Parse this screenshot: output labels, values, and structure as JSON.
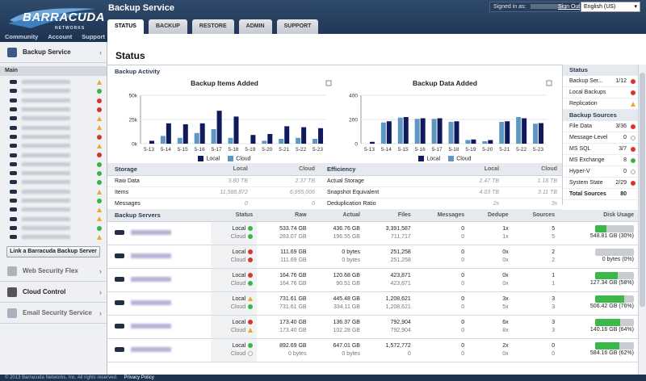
{
  "app": {
    "logo_text": "BARRACUDA",
    "logo_sub": "NETWORKS",
    "product": "Backup Service"
  },
  "top_links": [
    "Community",
    "Account",
    "Support"
  ],
  "header": {
    "signed_in_label": "Signed in as:",
    "sign_out": "Sign Out",
    "language": "English (US)"
  },
  "tabs": [
    "STATUS",
    "BACKUP",
    "RESTORE",
    "ADMIN",
    "SUPPORT"
  ],
  "sidebar": {
    "backup_service": "Backup Service",
    "main_label": "Main",
    "device_status": [
      "warning",
      "green",
      "red",
      "red",
      "warning",
      "warning",
      "red",
      "warning",
      "red",
      "green",
      "green",
      "green",
      "warning",
      "green",
      "warning",
      "warning",
      "green",
      "warning"
    ],
    "link_button": "Link a Barracuda Backup Server",
    "other_services": [
      "Web Security Flex",
      "Cloud Control",
      "Email Security Service"
    ]
  },
  "page_title": "Status",
  "activity": {
    "heading": "Backup Activity",
    "legend_local": "Local",
    "legend_cloud": "Cloud"
  },
  "chart_data": [
    {
      "type": "bar",
      "title": "Backup Items Added",
      "categories": [
        "5-13",
        "5-14",
        "5-15",
        "5-16",
        "5-17",
        "5-18",
        "5-19",
        "5-20",
        "5-21",
        "5-22",
        "5-23"
      ],
      "ytick_labels": [
        "50k",
        "25k",
        "0k"
      ],
      "ylim": [
        0,
        50000
      ],
      "series": [
        {
          "name": "Local",
          "values": [
            3000,
            21000,
            20000,
            21000,
            34000,
            28000,
            9000,
            10000,
            18000,
            17000,
            16000
          ]
        },
        {
          "name": "Cloud",
          "values": [
            0,
            8000,
            6000,
            11000,
            15000,
            6000,
            0,
            3000,
            5000,
            6000,
            5000
          ]
        }
      ],
      "colors": {
        "Local": "#0e1a5c",
        "Cloud": "#5d97c2"
      }
    },
    {
      "type": "bar",
      "title": "Backup Data Added",
      "categories": [
        "5-13",
        "5-14",
        "5-15",
        "5-16",
        "5-17",
        "5-18",
        "5-19",
        "5-20",
        "5-21",
        "5-22",
        "5-23"
      ],
      "ytick_labels": [
        "400",
        "200",
        "0"
      ],
      "ylim": [
        0,
        400
      ],
      "series": [
        {
          "name": "Local",
          "values": [
            15,
            185,
            220,
            210,
            210,
            185,
            35,
            30,
            185,
            210,
            170
          ]
        },
        {
          "name": "Cloud",
          "values": [
            0,
            175,
            215,
            205,
            205,
            180,
            30,
            20,
            180,
            220,
            165
          ]
        }
      ],
      "colors": {
        "Local": "#0e1a5c",
        "Cloud": "#5d97c2"
      }
    }
  ],
  "storage": {
    "heading": "Storage",
    "col_local": "Local",
    "col_cloud": "Cloud",
    "rows": [
      {
        "label": "Raw Data",
        "local": "3.80 TB",
        "cloud": "2.37 TB"
      },
      {
        "label": "Items",
        "local": "11,588,872",
        "cloud": "6,955,006"
      },
      {
        "label": "Messages",
        "local": "0",
        "cloud": "0"
      }
    ]
  },
  "efficiency": {
    "heading": "Efficiency",
    "col_local": "Local",
    "col_cloud": "Cloud",
    "rows": [
      {
        "label": "Actual Storage",
        "local": "2.47 TB",
        "cloud": "1.18 TB"
      },
      {
        "label": "Snapshot Equivalent",
        "local": "4.03 TB",
        "cloud": "3.11 TB"
      },
      {
        "label": "Deduplication Ratio",
        "local": "2x",
        "cloud": "3x"
      }
    ]
  },
  "status_panel": {
    "status_heading": "Status",
    "status_rows": [
      {
        "label": "Backup Ser...",
        "value": "1/12",
        "ind": "red"
      },
      {
        "label": "Local Backups",
        "value": "",
        "ind": "red"
      },
      {
        "label": "Replication",
        "value": "",
        "ind": "warning"
      }
    ],
    "sources_heading": "Backup Sources",
    "source_rows": [
      {
        "label": "File Data",
        "value": "3/36",
        "ind": "red"
      },
      {
        "label": "Message-Level",
        "value": "0",
        "ind": "gray"
      },
      {
        "label": "MS SQL",
        "value": "3/7",
        "ind": "red"
      },
      {
        "label": "MS Exchange",
        "value": "8",
        "ind": "green"
      },
      {
        "label": "Hyper-V",
        "value": "0",
        "ind": "gray"
      },
      {
        "label": "System State",
        "value": "2/29",
        "ind": "red"
      }
    ],
    "total_label": "Total Sources",
    "total_value": "80"
  },
  "servers": {
    "heading": "Backup Servers",
    "columns": [
      "Status",
      "Raw",
      "Actual",
      "Files",
      "Messages",
      "Dedupe",
      "Sources",
      "Disk Usage"
    ],
    "local_label": "Local",
    "cloud_label": "Cloud",
    "rows": [
      {
        "local_ind": "green",
        "cloud_ind": "green",
        "raw": [
          "533.74 GB",
          "283.07 GB"
        ],
        "actual": [
          "436.76 GB",
          "196.55 GB"
        ],
        "files": [
          "3,391,587",
          "711,717"
        ],
        "messages": [
          "0",
          "0"
        ],
        "dedupe": [
          "1x",
          "1x"
        ],
        "sources": [
          "5",
          "5"
        ],
        "disk_text": "548.81 GB (30%)",
        "disk_fraction": 0.3
      },
      {
        "local_ind": "red",
        "cloud_ind": "red",
        "raw": [
          "111.69 GB",
          "111.69 GB"
        ],
        "actual": [
          "0 bytes",
          "0 bytes"
        ],
        "files": [
          "251,258",
          "251,258"
        ],
        "messages": [
          "0",
          "0"
        ],
        "dedupe": [
          "0x",
          "0x"
        ],
        "sources": [
          "2",
          "2"
        ],
        "disk_text": "0 bytes (0%)",
        "disk_fraction": 0.0
      },
      {
        "local_ind": "red",
        "cloud_ind": "green",
        "raw": [
          "164.76 GB",
          "164.76 GB"
        ],
        "actual": [
          "120.68 GB",
          "90.51 GB"
        ],
        "files": [
          "423,871",
          "423,871"
        ],
        "messages": [
          "0",
          "0"
        ],
        "dedupe": [
          "0x",
          "0x"
        ],
        "sources": [
          "1",
          "1"
        ],
        "disk_text": "127.34 GB (58%)",
        "disk_fraction": 0.58
      },
      {
        "local_ind": "warning",
        "cloud_ind": "green",
        "raw": [
          "731.61 GB",
          "731.61 GB"
        ],
        "actual": [
          "445.48 GB",
          "334.11 GB"
        ],
        "files": [
          "1,208,621",
          "1,208,621"
        ],
        "messages": [
          "0",
          "0"
        ],
        "dedupe": [
          "3x",
          "5x"
        ],
        "sources": [
          "3",
          "3"
        ],
        "disk_text": "506.42 GB (76%)",
        "disk_fraction": 0.76
      },
      {
        "local_ind": "red",
        "cloud_ind": "warning",
        "raw": [
          "173.40 GB",
          "173.40 GB"
        ],
        "actual": [
          "136.37 GB",
          "102.28 GB"
        ],
        "files": [
          "792,904",
          "792,904"
        ],
        "messages": [
          "0",
          "0"
        ],
        "dedupe": [
          "6x",
          "8x"
        ],
        "sources": [
          "3",
          "3"
        ],
        "disk_text": "140.16 GB (64%)",
        "disk_fraction": 0.64
      },
      {
        "local_ind": "green",
        "cloud_ind": "gray",
        "raw": [
          "892.69 GB",
          "0 bytes"
        ],
        "actual": [
          "647.01 GB",
          "0 bytes"
        ],
        "files": [
          "1,572,772",
          "0"
        ],
        "messages": [
          "0",
          "0"
        ],
        "dedupe": [
          "2x",
          "0x"
        ],
        "sources": [
          "0",
          "0"
        ],
        "disk_text": "584.16 GB (62%)",
        "disk_fraction": 0.62
      }
    ]
  },
  "footer": {
    "copyright": "© 2013 Barracuda Networks, Inc. All rights reserved.",
    "privacy": "Privacy Policy"
  }
}
